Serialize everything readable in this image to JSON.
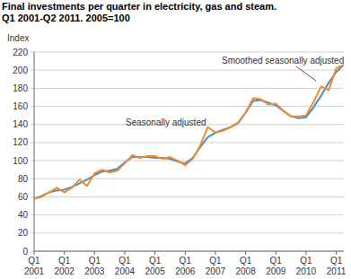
{
  "chart_data": {
    "type": "line",
    "title": "Final investments per quarter in electricity, gas and steam.",
    "subtitle": "Q1 2001-Q2 2011. 2005=100",
    "y_label": "Index",
    "categories": [
      "Q1 2001",
      null,
      null,
      null,
      "Q1 2002",
      null,
      null,
      null,
      "Q1 2003",
      null,
      null,
      null,
      "Q1 2004",
      null,
      null,
      null,
      "Q1 2005",
      null,
      null,
      null,
      "Q1 2006",
      null,
      null,
      null,
      "Q1 2007",
      null,
      null,
      null,
      "Q1 2008",
      null,
      null,
      null,
      "Q1 2009",
      null,
      null,
      null,
      "Q1 2010",
      null,
      null,
      null,
      "Q1 2011",
      null
    ],
    "series": [
      {
        "name": "Smoothed seasonally adjusted",
        "color": "#3d8fd4",
        "values": [
          58,
          61,
          65,
          67,
          68,
          71,
          75,
          79,
          84,
          88,
          89,
          91,
          98,
          104,
          104,
          104,
          103,
          103,
          102,
          99,
          97,
          103,
          115,
          126,
          131,
          134,
          137,
          142,
          153,
          166,
          167,
          164,
          161,
          155,
          149,
          147,
          148,
          159,
          172,
          186,
          198,
          206
        ]
      },
      {
        "name": "Seasonally adjusted",
        "color": "#f28c28",
        "values": [
          58,
          60,
          65,
          70,
          65,
          70,
          79,
          72,
          86,
          90,
          87,
          89,
          97,
          106,
          103,
          105,
          105,
          102,
          104,
          100,
          95,
          102,
          117,
          137,
          131,
          133,
          137,
          141,
          153,
          169,
          168,
          162,
          163,
          155,
          149,
          149,
          150,
          165,
          182,
          178,
          202,
          206
        ]
      }
    ],
    "annotations": [
      "Smoothed seasonally adjusted",
      "Seasonally adjusted"
    ],
    "ylim": [
      0,
      220
    ],
    "yticks": [
      0,
      20,
      40,
      60,
      80,
      100,
      120,
      140,
      160,
      180,
      200,
      220
    ],
    "grid": true
  }
}
